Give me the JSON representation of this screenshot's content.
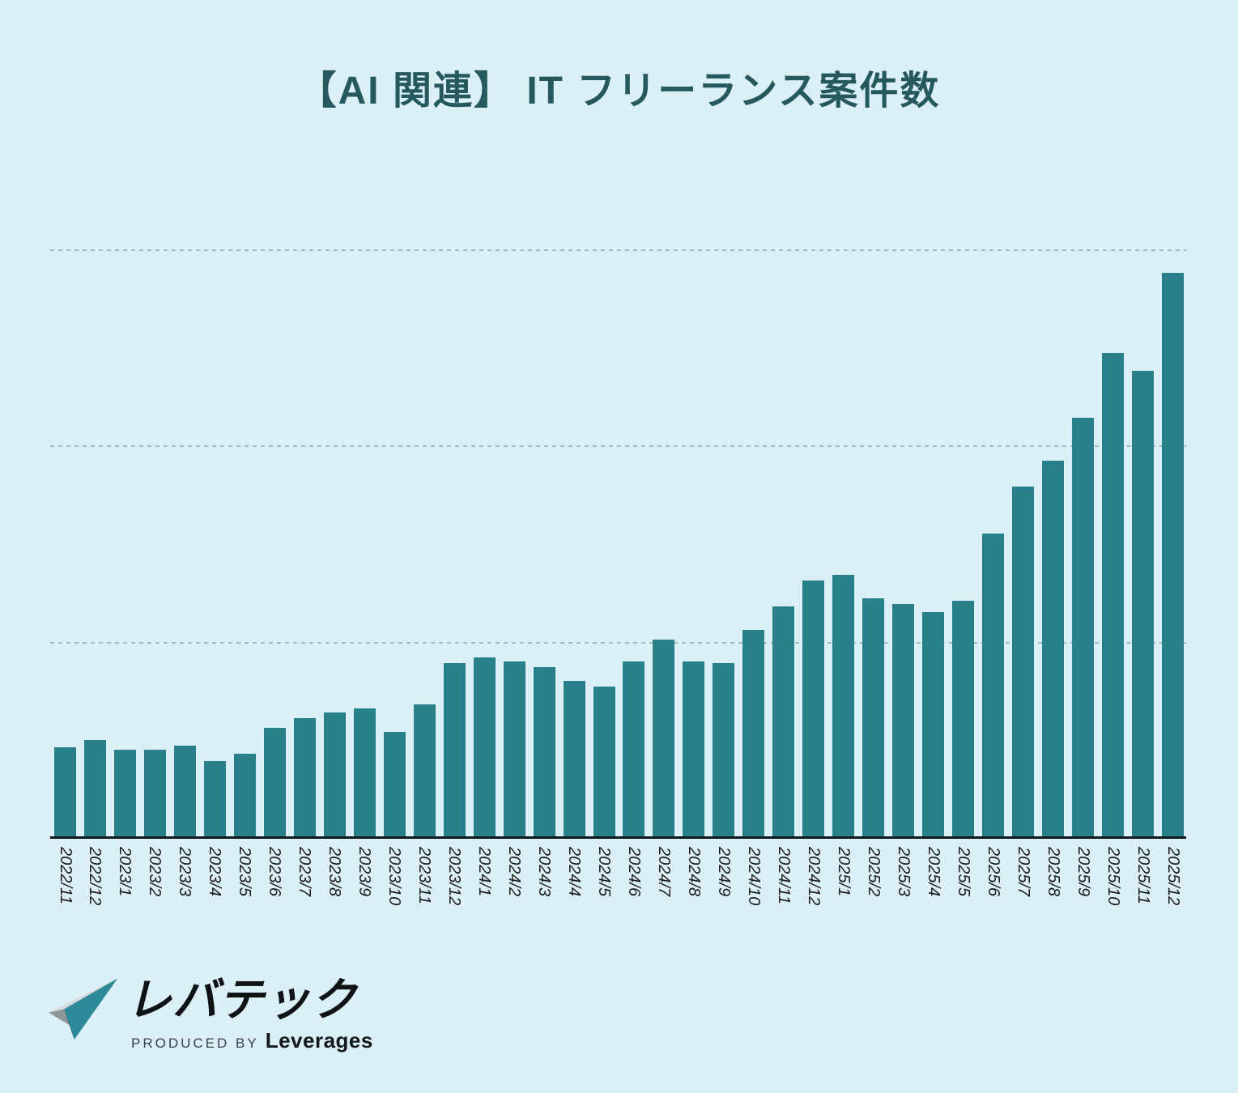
{
  "title": "【AI 関連】 IT フリーランス案件数",
  "chart_data": {
    "type": "bar",
    "title": "【AI 関連】 IT フリーランス案件数",
    "categories": [
      "2022/11",
      "2022/12",
      "2023/1",
      "2023/2",
      "2023/3",
      "2023/4",
      "2023/5",
      "2023/6",
      "2023/7",
      "2023/8",
      "2023/9",
      "2023/10",
      "2023/11",
      "2023/12",
      "2024/1",
      "2024/2",
      "2024/3",
      "2024/4",
      "2024/5",
      "2024/6",
      "2024/7",
      "2024/8",
      "2024/9",
      "2024/10",
      "2024/11",
      "2024/12",
      "2025/1",
      "2025/2",
      "2025/3",
      "2025/4",
      "2025/5",
      "2025/6",
      "2025/7",
      "2025/8",
      "2025/9",
      "2025/10",
      "2025/11",
      "2025/12"
    ],
    "values": [
      46,
      50,
      45,
      45,
      47,
      39,
      43,
      56,
      61,
      64,
      66,
      54,
      68,
      89,
      92,
      90,
      87,
      80,
      77,
      90,
      101,
      90,
      89,
      106,
      118,
      131,
      134,
      122,
      119,
      115,
      121,
      155,
      179,
      192,
      214,
      247,
      238,
      288
    ],
    "xlabel": "",
    "ylabel": "",
    "y_axis_tick_labels_visible": false,
    "x_label_rotation_deg": 90,
    "gridlines": {
      "count": 3,
      "interval": 100,
      "style": "dashed",
      "color": "#a2bcc2"
    },
    "ylim": [
      0,
      302
    ],
    "legend": "none",
    "bar_color": "#28808a",
    "background_color": "#daeff6",
    "axis_line_color": "#0d1a1d",
    "title_color": "#25595d",
    "note": "values are relative units estimated from unlabeled gridlines (gridline spacing = 100)"
  },
  "logo": {
    "wordmark": "レバテック",
    "produced_by": "PRODUCED BY",
    "company": "Leverages",
    "mark_colors": {
      "sliver": "#d7dadb",
      "left": "#8f969a",
      "main": "#2d8a99",
      "shadow": "#16333e"
    }
  }
}
